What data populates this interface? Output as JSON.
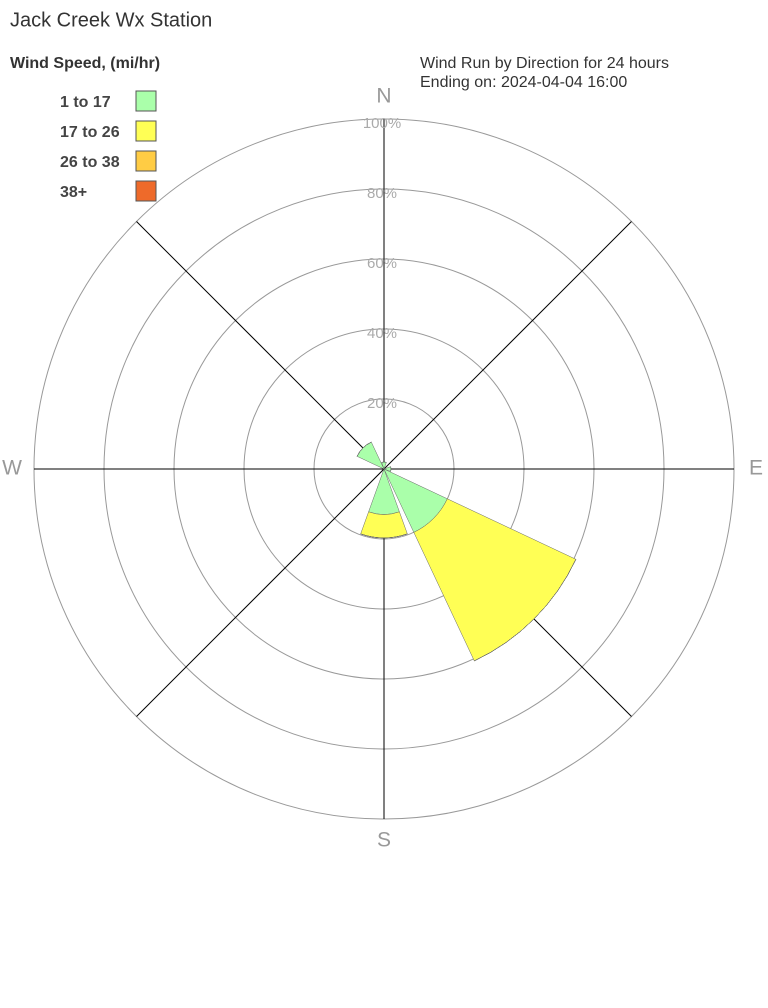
{
  "chart_data": {
    "type": "wind-rose",
    "title": "Jack Creek Wx Station",
    "subtitle": [
      "Wind Run by Direction for 24 hours",
      "Ending on: 2024-04-04 16:00"
    ],
    "legend_title": "Wind Speed, (mi/hr)",
    "categories": [
      "N",
      null,
      "E",
      null,
      "S",
      null,
      "W",
      null
    ],
    "series": [
      {
        "name": "1 to 17",
        "color": "#aaffaa",
        "values": [
          2,
          0,
          2,
          20,
          13,
          0,
          0,
          8.5
        ]
      },
      {
        "name": "17 to 26",
        "color": "#ffff55",
        "values": [
          0,
          0,
          0,
          40.6,
          6.7,
          0,
          0,
          0
        ]
      },
      {
        "name": "26 to 38",
        "color": "#ffcc44",
        "values": [
          0,
          0,
          0,
          0,
          0,
          0,
          0,
          0
        ]
      },
      {
        "name": "38+",
        "color": "#ee6a2a",
        "values": [
          0,
          0,
          0,
          0,
          0,
          0,
          0,
          0
        ]
      }
    ],
    "rlim": [
      0,
      100
    ],
    "rticks": [
      {
        "value": 20,
        "label": "20%"
      },
      {
        "value": 40,
        "label": "40%"
      },
      {
        "value": 60,
        "label": "60%"
      },
      {
        "value": 80,
        "label": "80%"
      },
      {
        "value": 100,
        "label": "100%"
      }
    ]
  }
}
